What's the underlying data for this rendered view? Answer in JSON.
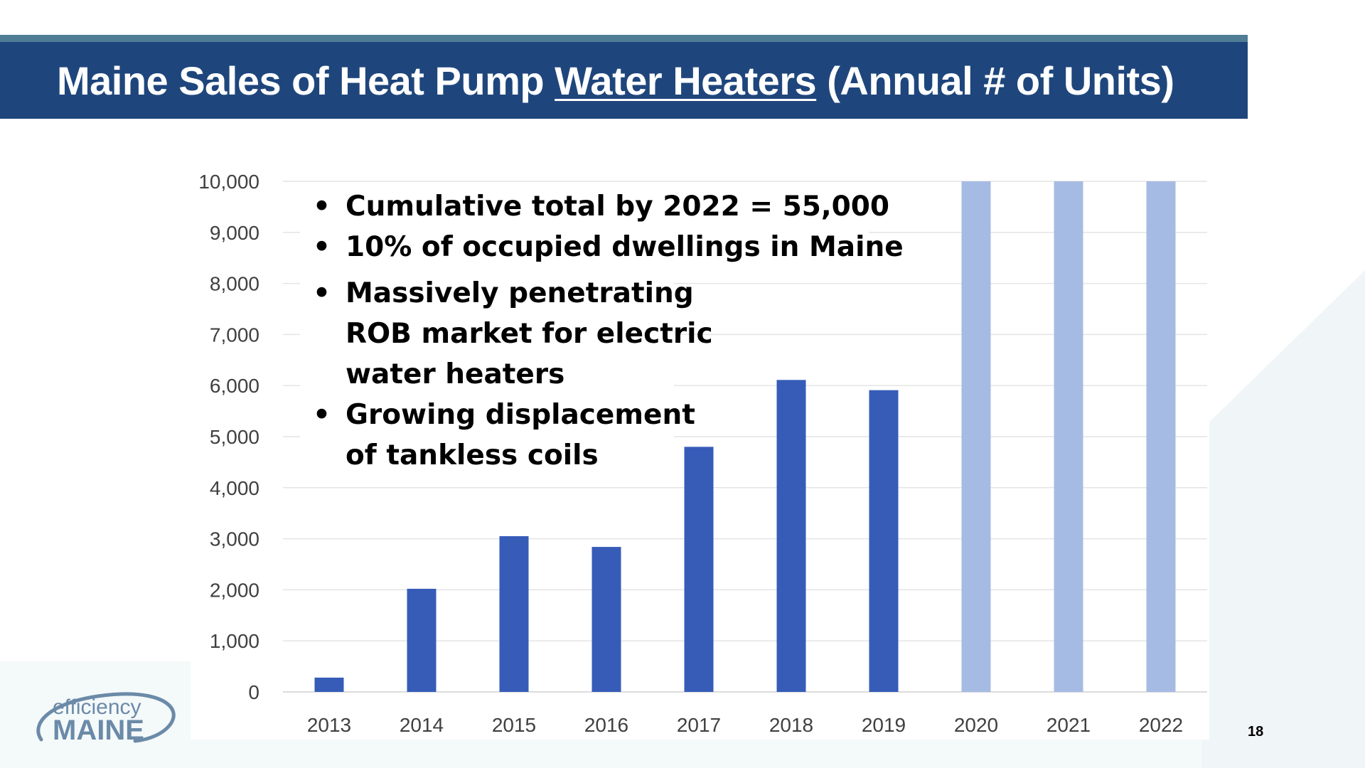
{
  "slide": {
    "title_prefix": "Maine Sales of Heat Pump ",
    "title_underlined": "Water Heaters",
    "title_suffix": " (Annual # of Units)",
    "page_number": "18"
  },
  "callout": {
    "bullet1": "Cumulative total by 2022 = 55,000",
    "bullet2": "10% of occupied dwellings in Maine",
    "bullet3_line1": "Massively penetrating",
    "bullet3_line2": "ROB market for electric",
    "bullet3_line3": "water heaters",
    "bullet4_line1": "Growing displacement",
    "bullet4_line2": "of tankless coils"
  },
  "logo": {
    "line1": "efficiency",
    "line2": "MAINE"
  },
  "colors": {
    "title_bar": "#1f467c",
    "title_accent": "#4f7d96",
    "bar_actual": "#365cb8",
    "bar_light": "#a6bbe3",
    "gridline": "#e4e4e4",
    "tick_text": "#404040",
    "logo": "#6b8aa8"
  },
  "chart_data": {
    "type": "bar",
    "categories": [
      "2013",
      "2014",
      "2015",
      "2016",
      "2017",
      "2018",
      "2019",
      "2020",
      "2021",
      "2022"
    ],
    "values": [
      280,
      2020,
      3050,
      2840,
      4800,
      6110,
      5910,
      10000,
      10000,
      10000
    ],
    "light_bars": [
      false,
      false,
      false,
      false,
      false,
      false,
      false,
      true,
      true,
      true
    ],
    "ylim": [
      0,
      10000
    ],
    "yticks": [
      0,
      1000,
      2000,
      3000,
      4000,
      5000,
      6000,
      7000,
      8000,
      9000,
      10000
    ],
    "ytick_labels": [
      "0",
      "1,000",
      "2,000",
      "3,000",
      "4,000",
      "5,000",
      "6,000",
      "7,000",
      "8,000",
      "9,000",
      "10,000"
    ],
    "grid": true,
    "legend": "none",
    "xlabel": "",
    "ylabel": ""
  }
}
